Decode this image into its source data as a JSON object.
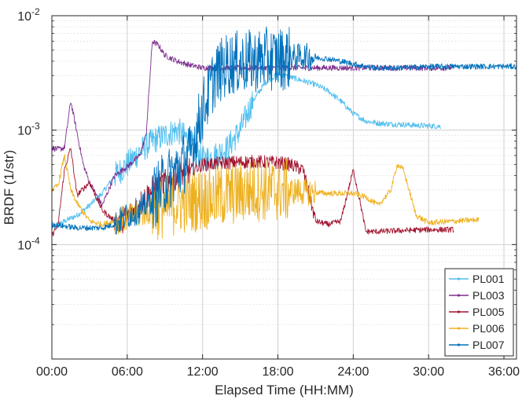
{
  "chart_data": {
    "type": "line",
    "title": "",
    "xlabel": "Elapsed Time (HH:MM)",
    "ylabel": "BRDF (1/str)",
    "xlim": [
      0,
      37
    ],
    "ylim": [
      1e-05,
      0.01
    ],
    "yscale": "log",
    "grid": true,
    "minor_grid": true,
    "legend_position": "bottom-right",
    "x_ticks": [
      0,
      6,
      12,
      18,
      24,
      30,
      36
    ],
    "x_tick_labels": [
      "00:00",
      "06:00",
      "12:00",
      "18:00",
      "24:00",
      "30:00",
      "36:00"
    ],
    "y_ticks": [
      0.0001,
      0.001,
      0.01
    ],
    "y_tick_labels": [
      {
        "base": "10",
        "exp": "-4"
      },
      {
        "base": "10",
        "exp": "-3"
      },
      {
        "base": "10",
        "exp": "-2"
      }
    ],
    "series": [
      {
        "name": "PL001",
        "color": "#4dbeee",
        "x": [
          0,
          1,
          2,
          3,
          4,
          5,
          6,
          7,
          8,
          9,
          10,
          11,
          12,
          13,
          14,
          15,
          16,
          17,
          18,
          19,
          20,
          21,
          22,
          23,
          24,
          25,
          26,
          27,
          28,
          29,
          30,
          31
        ],
        "y": [
          0.00014,
          0.00016,
          0.00018,
          0.00022,
          0.00028,
          0.0004,
          0.0005,
          0.00065,
          0.0008,
          0.0009,
          0.001,
          0.0008,
          0.00055,
          0.0006,
          0.0007,
          0.001,
          0.0018,
          0.0026,
          0.0031,
          0.0029,
          0.0027,
          0.0025,
          0.0022,
          0.0018,
          0.0014,
          0.0012,
          0.00115,
          0.00113,
          0.00112,
          0.0011,
          0.00109,
          0.00108
        ]
      },
      {
        "name": "PL003",
        "color": "#7e2f8e",
        "x": [
          0,
          0.5,
          1,
          1.5,
          2,
          2.5,
          3,
          4,
          5,
          6,
          7,
          7.5,
          8,
          8.5,
          9,
          10,
          11,
          12,
          14,
          16,
          18,
          20,
          22,
          24,
          26,
          28,
          30,
          32
        ],
        "y": [
          0.0007,
          0.00068,
          0.0007,
          0.0018,
          0.00095,
          0.0005,
          0.00035,
          0.00022,
          0.0004,
          0.00048,
          0.0006,
          0.0009,
          0.006,
          0.0055,
          0.0045,
          0.004,
          0.0037,
          0.0035,
          0.0035,
          0.0035,
          0.0035,
          0.0035,
          0.0035,
          0.0035,
          0.0035,
          0.0035,
          0.0035,
          0.0035
        ]
      },
      {
        "name": "PL005",
        "color": "#a2142f",
        "x": [
          0,
          0.5,
          1,
          1.5,
          2,
          3,
          4,
          5,
          6,
          8,
          10,
          12,
          14,
          16,
          18,
          19,
          20,
          21,
          22,
          23,
          24,
          24.5,
          25,
          26,
          28,
          30,
          32
        ],
        "y": [
          0.00012,
          0.00015,
          0.00045,
          0.0007,
          0.00027,
          0.00035,
          0.0002,
          0.00016,
          0.00017,
          0.0003,
          0.0004,
          0.0005,
          0.00052,
          0.00053,
          0.00052,
          0.0005,
          0.00045,
          0.00016,
          0.00015,
          0.00016,
          0.00045,
          0.00025,
          0.00013,
          0.00013,
          0.000133,
          0.000135,
          0.000135
        ]
      },
      {
        "name": "PL006",
        "color": "#edb120",
        "x": [
          0,
          0.5,
          1,
          1.5,
          2,
          3,
          4,
          5,
          6,
          8,
          10,
          12,
          14,
          16,
          18,
          20,
          22,
          24,
          25,
          26,
          27,
          27.5,
          28,
          29,
          30,
          32,
          34
        ],
        "y": [
          0.0003,
          0.00033,
          0.0006,
          0.0003,
          0.00023,
          0.00016,
          0.00015,
          0.00016,
          0.00017,
          0.0002,
          0.00023,
          0.00025,
          0.00027,
          0.0003,
          0.0003,
          0.00029,
          0.00028,
          0.00028,
          0.00026,
          0.00022,
          0.0003,
          0.0005,
          0.00045,
          0.00018,
          0.000155,
          0.00016,
          0.000165
        ]
      },
      {
        "name": "PL007",
        "color": "#0072bd",
        "x": [
          0,
          1,
          2,
          3,
          4,
          5,
          6,
          7,
          8,
          9,
          10,
          11,
          12,
          13,
          14,
          15,
          16,
          17,
          18,
          19,
          20,
          21,
          22,
          23,
          24,
          25,
          26,
          28,
          30,
          32,
          34,
          37
        ],
        "y": [
          0.00015,
          0.000145,
          0.00014,
          0.00014,
          0.00014,
          0.00015,
          0.00018,
          0.0002,
          0.00025,
          0.00035,
          0.00045,
          0.0006,
          0.0015,
          0.003,
          0.0038,
          0.0039,
          0.004,
          0.0042,
          0.0042,
          0.0043,
          0.0044,
          0.0043,
          0.0042,
          0.004,
          0.0038,
          0.0036,
          0.0035,
          0.0035,
          0.0036,
          0.0036,
          0.0036,
          0.0036
        ]
      }
    ]
  }
}
